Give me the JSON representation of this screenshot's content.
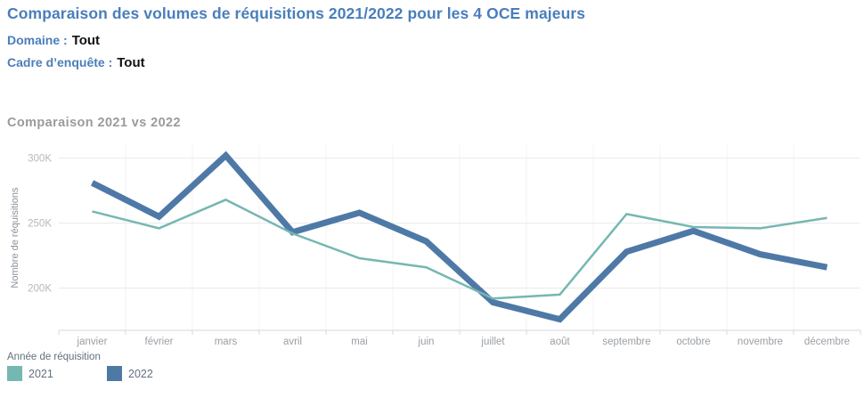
{
  "header": {
    "title": "Comparaison des volumes de réquisitions 2021/2022 pour les 4 OCE majeurs",
    "filters": [
      {
        "label": "Domaine :",
        "value": "Tout"
      },
      {
        "label": "Cadre d’enquête :",
        "value": "Tout"
      }
    ]
  },
  "chart": {
    "title": "Comparaison 2021 vs 2022"
  },
  "chart_data": {
    "type": "line",
    "title": "Comparaison 2021 vs 2022",
    "categories": [
      "janvier",
      "février",
      "mars",
      "avril",
      "mai",
      "juin",
      "juillet",
      "août",
      "septembre",
      "octobre",
      "novembre",
      "décembre"
    ],
    "series": [
      {
        "name": "2021",
        "color": "#76b7b2",
        "stroke_width": 2.5,
        "values": [
          259000,
          246000,
          268000,
          242000,
          223000,
          216000,
          192000,
          195000,
          257000,
          247000,
          246000,
          254000
        ]
      },
      {
        "name": "2022",
        "color": "#4e79a7",
        "stroke_width": 7,
        "values": [
          281000,
          255000,
          302000,
          243000,
          258000,
          236000,
          189000,
          176000,
          228000,
          244000,
          226000,
          216000
        ]
      }
    ],
    "xlabel": "",
    "ylabel": "Nombre de réquisitions",
    "ylim": [
      167500,
      310000
    ],
    "yticks": [
      {
        "value": 200000,
        "label": "200K"
      },
      {
        "value": 250000,
        "label": "250K"
      },
      {
        "value": 300000,
        "label": "300K"
      }
    ],
    "grid": "horizontal",
    "legend_position": "bottom-left"
  },
  "legend": {
    "title": "Année de réquisition",
    "items": [
      {
        "label": "2021",
        "color": "#76b7b2"
      },
      {
        "label": "2022",
        "color": "#4e79a7"
      }
    ]
  },
  "colors": {
    "title_blue": "#4a7ebb",
    "axis_label_gray": "#8a9299",
    "tick_gray": "#b4b9bd",
    "gridline": "#e9e9e9",
    "axis_line": "#d7d7d7"
  }
}
